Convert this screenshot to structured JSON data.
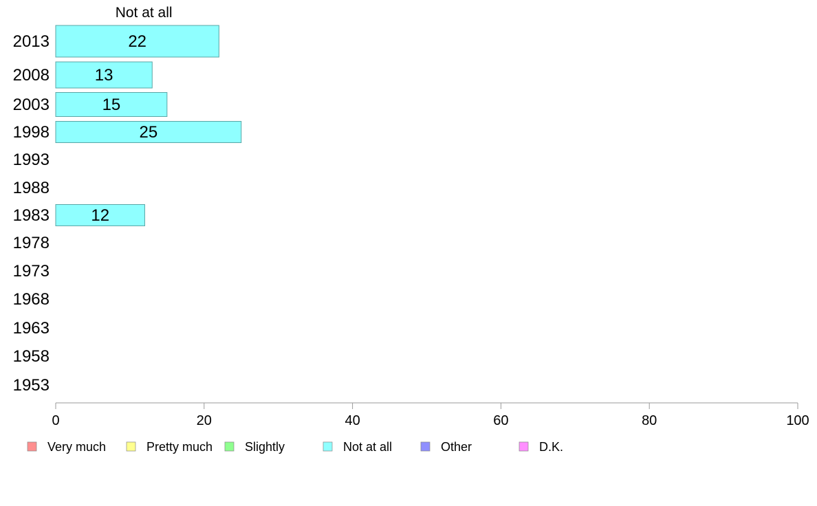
{
  "chart_data": {
    "type": "bar",
    "orientation": "horizontal",
    "title": "Not at all",
    "categories": [
      "2013",
      "2008",
      "2003",
      "1998",
      "1993",
      "1988",
      "1983",
      "1978",
      "1973",
      "1968",
      "1963",
      "1958",
      "1953"
    ],
    "series": [
      {
        "name": "Not at all",
        "color": "#8fffff",
        "values": [
          22,
          13,
          15,
          25,
          null,
          null,
          12,
          null,
          null,
          null,
          null,
          null,
          null
        ],
        "labels": [
          "22",
          "13",
          "15",
          "25",
          "",
          "",
          "12",
          "",
          "",
          "",
          "",
          "",
          ""
        ]
      }
    ],
    "xlim": [
      0,
      100
    ],
    "xticks": [
      "0",
      "20",
      "40",
      "60",
      "80",
      "100"
    ],
    "xlabel": "",
    "ylabel": "",
    "grid": false,
    "legend_position": "bottom",
    "legend": [
      {
        "label": "Very much",
        "color": "#ff8f8f"
      },
      {
        "label": "Pretty much",
        "color": "#ffff8f"
      },
      {
        "label": "Slightly",
        "color": "#8fff8f"
      },
      {
        "label": "Not at all",
        "color": "#8fffff"
      },
      {
        "label": "Other",
        "color": "#8f8fff"
      },
      {
        "label": "D.K.",
        "color": "#ff8fff"
      }
    ]
  }
}
